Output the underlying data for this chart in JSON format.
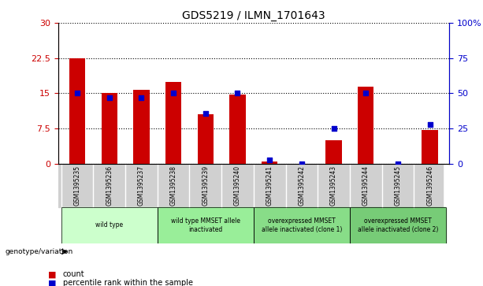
{
  "title": "GDS5219 / ILMN_1701643",
  "samples": [
    "GSM1395235",
    "GSM1395236",
    "GSM1395237",
    "GSM1395238",
    "GSM1395239",
    "GSM1395240",
    "GSM1395241",
    "GSM1395242",
    "GSM1395243",
    "GSM1395244",
    "GSM1395245",
    "GSM1395246"
  ],
  "bar_values": [
    22.5,
    15.0,
    15.8,
    17.5,
    10.5,
    14.8,
    0.5,
    0.0,
    5.0,
    16.5,
    0.0,
    7.2
  ],
  "dot_values": [
    50,
    47,
    47,
    50,
    36,
    50,
    3,
    0,
    25,
    50,
    0,
    28
  ],
  "bar_color": "#CC0000",
  "dot_color": "#0000CC",
  "ylim_left": [
    0,
    30
  ],
  "ylim_right": [
    0,
    100
  ],
  "yticks_left": [
    0,
    7.5,
    15,
    22.5,
    30
  ],
  "ytick_labels_left": [
    "0",
    "7.5",
    "15",
    "22.5",
    "30"
  ],
  "yticks_right": [
    0,
    25,
    50,
    75,
    100
  ],
  "ytick_labels_right": [
    "0",
    "25",
    "50",
    "75",
    "100%"
  ],
  "groups": [
    {
      "label": "wild type",
      "start": 0,
      "end": 3,
      "color": "#ccffcc"
    },
    {
      "label": "wild type MMSET allele\ninactivated",
      "start": 3,
      "end": 6,
      "color": "#99ff99"
    },
    {
      "label": "overexpressed MMSET\nallele inactivated (clone 1)",
      "start": 6,
      "end": 9,
      "color": "#66ff66"
    },
    {
      "label": "overexpressed MMSET\nallele inactivated (clone 2)",
      "start": 9,
      "end": 12,
      "color": "#44cc44"
    }
  ],
  "legend_count_color": "#CC0000",
  "legend_dot_color": "#0000CC",
  "bg_plot": "#ffffff",
  "grid_color": "#000000",
  "group_row_bg": "#d0d0d0"
}
